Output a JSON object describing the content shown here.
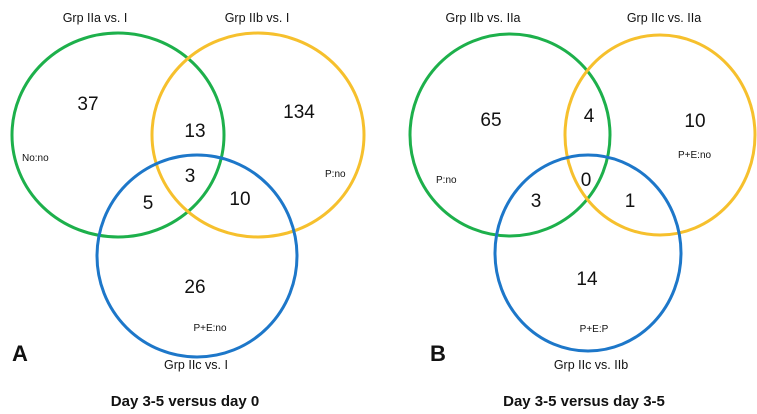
{
  "colors": {
    "green": "#1db04b",
    "yellow": "#f6c02d",
    "blue": "#1d77c9"
  },
  "panels": [
    {
      "label": "A",
      "caption": "Day 3-5  versus day 0",
      "sets": {
        "green": {
          "title": "Grp IIa vs. I",
          "tag": "No:no"
        },
        "yellow": {
          "title": "Grp IIb vs. I",
          "tag": "P:no"
        },
        "blue": {
          "title": "Grp IIc vs. I",
          "tag": "P+E:no"
        }
      },
      "regions": {
        "green_only": "37",
        "yellow_only": "134",
        "blue_only": "26",
        "green_yellow": "13",
        "green_blue": "5",
        "yellow_blue": "10",
        "all": "3"
      }
    },
    {
      "label": "B",
      "caption": "Day 3-5  versus day 3-5",
      "sets": {
        "green": {
          "title": "Grp IIb vs. IIa",
          "tag": "P:no"
        },
        "yellow": {
          "title": "Grp IIc vs. IIa",
          "tag": "P+E:no"
        },
        "blue": {
          "title": "Grp IIc vs. IIb",
          "tag": "P+E:P"
        }
      },
      "regions": {
        "green_only": "65",
        "yellow_only": "10",
        "blue_only": "14",
        "green_yellow": "4",
        "green_blue": "3",
        "yellow_blue": "1",
        "all": "0"
      }
    }
  ]
}
